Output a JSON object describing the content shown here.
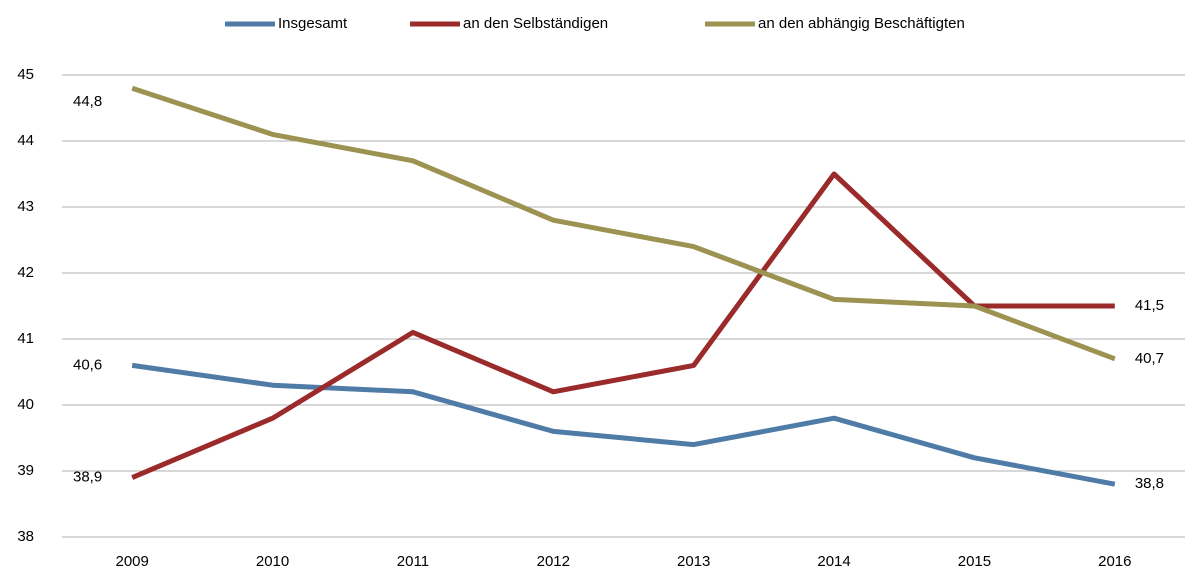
{
  "chart_data": {
    "type": "line",
    "categories": [
      "2009",
      "2010",
      "2011",
      "2012",
      "2013",
      "2014",
      "2015",
      "2016"
    ],
    "series": [
      {
        "name": "Insgesamt",
        "color": "#4f7ba7",
        "values": [
          40.6,
          40.3,
          40.2,
          39.6,
          39.4,
          39.8,
          39.2,
          38.8
        ],
        "value_labels": [
          "40,6",
          null,
          null,
          null,
          null,
          null,
          null,
          "38,8"
        ]
      },
      {
        "name": "an den Selbständigen",
        "color": "#9b2a2a",
        "values": [
          38.9,
          39.8,
          41.1,
          40.2,
          40.6,
          43.5,
          41.5,
          41.5
        ],
        "value_labels": [
          "38,9",
          null,
          null,
          null,
          null,
          null,
          null,
          "41,5"
        ]
      },
      {
        "name": "an den abhängig Beschäftigten",
        "color": "#9c9251",
        "values": [
          44.8,
          44.1,
          43.7,
          42.8,
          42.4,
          41.6,
          41.5,
          40.7
        ],
        "value_labels": [
          "44,8",
          null,
          null,
          null,
          null,
          null,
          null,
          "40,7"
        ]
      }
    ],
    "ylim": [
      38,
      45
    ],
    "yticks": [
      38,
      39,
      40,
      41,
      42,
      43,
      44,
      45
    ],
    "grid": true,
    "legend": "top"
  }
}
